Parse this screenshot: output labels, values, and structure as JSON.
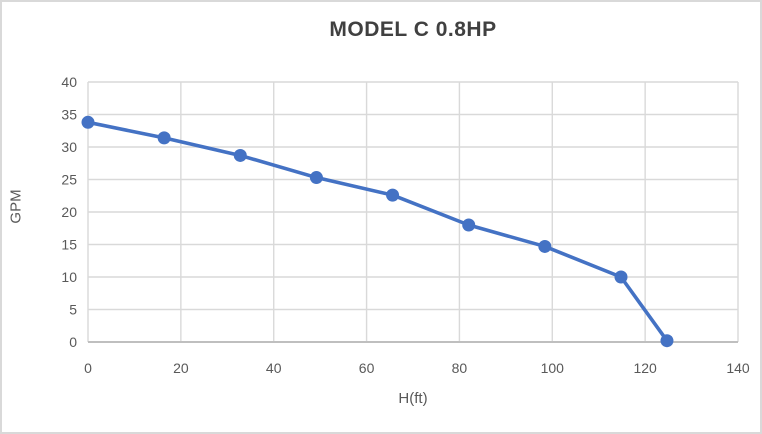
{
  "chart_data": {
    "type": "line",
    "title": "MODEL C 0.8HP",
    "xlabel": "H(ft)",
    "ylabel": "GPM",
    "x": [
      0,
      16.4,
      32.8,
      49.2,
      65.6,
      82,
      98.4,
      114.8,
      124.7
    ],
    "y": [
      33.8,
      31.4,
      28.7,
      25.3,
      22.6,
      18.0,
      14.7,
      10.0,
      0.2
    ],
    "xlim": [
      0,
      140
    ],
    "ylim": [
      0,
      40
    ],
    "xticks": [
      0,
      20,
      40,
      60,
      80,
      100,
      120,
      140
    ],
    "yticks": [
      0,
      5,
      10,
      15,
      20,
      25,
      30,
      35,
      40
    ],
    "grid": true,
    "legend": false,
    "marker": "circle",
    "line_color": "#4472C4",
    "gridline_color": "#d9d9d9",
    "axis_line_color": "#bfbfbf",
    "tick_label_color": "#595959",
    "title_color": "#404040"
  }
}
